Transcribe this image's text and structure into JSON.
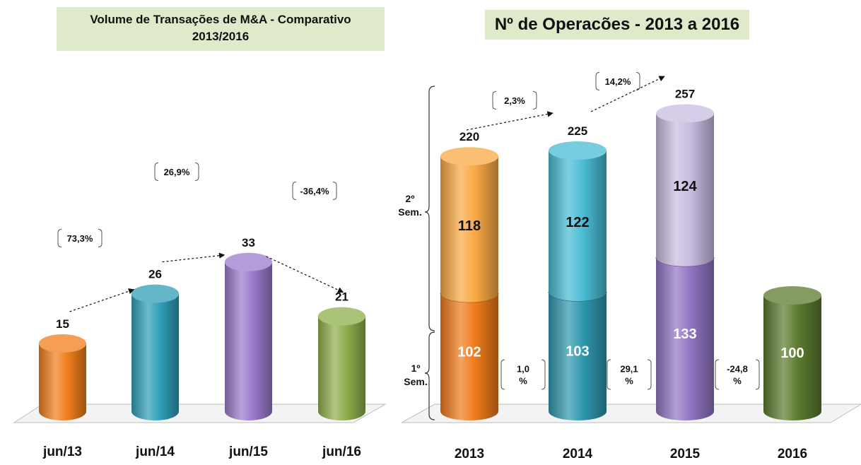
{
  "chart_data": [
    {
      "type": "bar",
      "title": "Volume de Transações de M&A - Comparativo 2013/2016",
      "title_line1": "Volume de Transações de M&A - Comparativo",
      "title_line2": "2013/2016",
      "categories": [
        "jun/13",
        "jun/14",
        "jun/15",
        "jun/16"
      ],
      "values": [
        15,
        26,
        33,
        21
      ],
      "colors": [
        "#f07f1c",
        "#2f9fb7",
        "#9a7bcb",
        "#8fae4c"
      ],
      "growth": [
        "73,3%",
        "26,9%",
        "-36,4%"
      ],
      "ylim": [
        0,
        40
      ]
    },
    {
      "type": "bar",
      "stacked": true,
      "title": "Nº de Operacões  - 2013 a 2016",
      "categories": [
        "2013",
        "2014",
        "2015",
        "2016"
      ],
      "series": [
        {
          "name": "1º Sem.",
          "values": [
            102,
            103,
            133,
            100
          ],
          "colors": [
            "#ef7b1a",
            "#2e97ad",
            "#9075c2",
            "#5b7a2e"
          ]
        },
        {
          "name": "2º Sem.",
          "values": [
            118,
            122,
            124,
            null
          ],
          "colors": [
            "#f9a944",
            "#49bcd4",
            "#c8bce0",
            null
          ]
        }
      ],
      "totals": [
        "220",
        "225",
        "257",
        null
      ],
      "growth_totals": [
        "2,3%",
        "14,2%"
      ],
      "growth_first_half": [
        {
          "line1": "1,0",
          "line2": "%"
        },
        {
          "line1": "29,1",
          "line2": "%"
        },
        {
          "line1": "-24,8",
          "line2": "%"
        }
      ],
      "bracket_labels": {
        "second": {
          "line1": "2º",
          "line2": "Sem."
        },
        "first": {
          "line1": "1º",
          "line2": "Sem."
        }
      },
      "ylim": [
        0,
        280
      ]
    }
  ]
}
